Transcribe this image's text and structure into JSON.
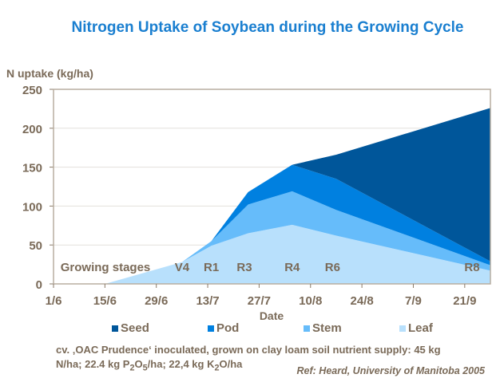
{
  "chart_data": {
    "type": "area",
    "stacked": true,
    "title": "Nitrogen Uptake of Soybean during the Growing Cycle",
    "xlabel": "Date",
    "ylabel": "N uptake (kg/ha)",
    "ylim": [
      0,
      250
    ],
    "yticks": [
      0,
      50,
      100,
      150,
      200,
      250
    ],
    "xticks": [
      "1/6",
      "15/6",
      "29/6",
      "13/7",
      "27/7",
      "10/8",
      "24/8",
      "7/9",
      "21/9"
    ],
    "xlim": [
      "1/6",
      "28/9"
    ],
    "grid": "horizontal",
    "legend_position": "bottom",
    "x": [
      "1/6",
      "15/6",
      "6/7",
      "14/7",
      "24/7",
      "5/8",
      "17/8",
      "28/9"
    ],
    "series": [
      {
        "name": "Leaf",
        "color": "#b8e0fc",
        "values": [
          0,
          0,
          28,
          49,
          65,
          76,
          62,
          17
        ]
      },
      {
        "name": "Stem",
        "color": "#66bcfa",
        "values": [
          0,
          0,
          0,
          6,
          37,
          43,
          33,
          7
        ]
      },
      {
        "name": "Pod",
        "color": "#0080e0",
        "values": [
          0,
          0,
          0,
          0,
          16,
          34,
          40,
          5
        ]
      },
      {
        "name": "Seed",
        "color": "#00569a",
        "values": [
          0,
          0,
          0,
          0,
          0,
          0,
          31,
          197
        ]
      }
    ],
    "legend_order": [
      "Seed",
      "Pod",
      "Stem",
      "Leaf"
    ],
    "annotations": {
      "label": "Growing stages",
      "stages": [
        {
          "name": "V4",
          "date": "6/7"
        },
        {
          "name": "R1",
          "date": "14/7"
        },
        {
          "name": "R3",
          "date": "23/7"
        },
        {
          "name": "R4",
          "date": "5/8"
        },
        {
          "name": "R6",
          "date": "16/8"
        },
        {
          "name": "R8",
          "date": "23/9"
        }
      ]
    }
  },
  "note": {
    "line1": "cv. ‚OAC Prudence‘ inoculated, grown on clay loam soil nutrient supply: 45 kg",
    "line2a": "N/ha; 22.4 kg P",
    "sub1": "2",
    "line2b": "O",
    "sub2": "5",
    "line2c": "/ha;  22,4 kg K",
    "sub3": "2",
    "line2d": "O/ha"
  },
  "ref": "Ref: Heard, University of Manitoba 2005",
  "colors": {
    "title": "#1a7fd0",
    "text": "#7a6a58"
  }
}
